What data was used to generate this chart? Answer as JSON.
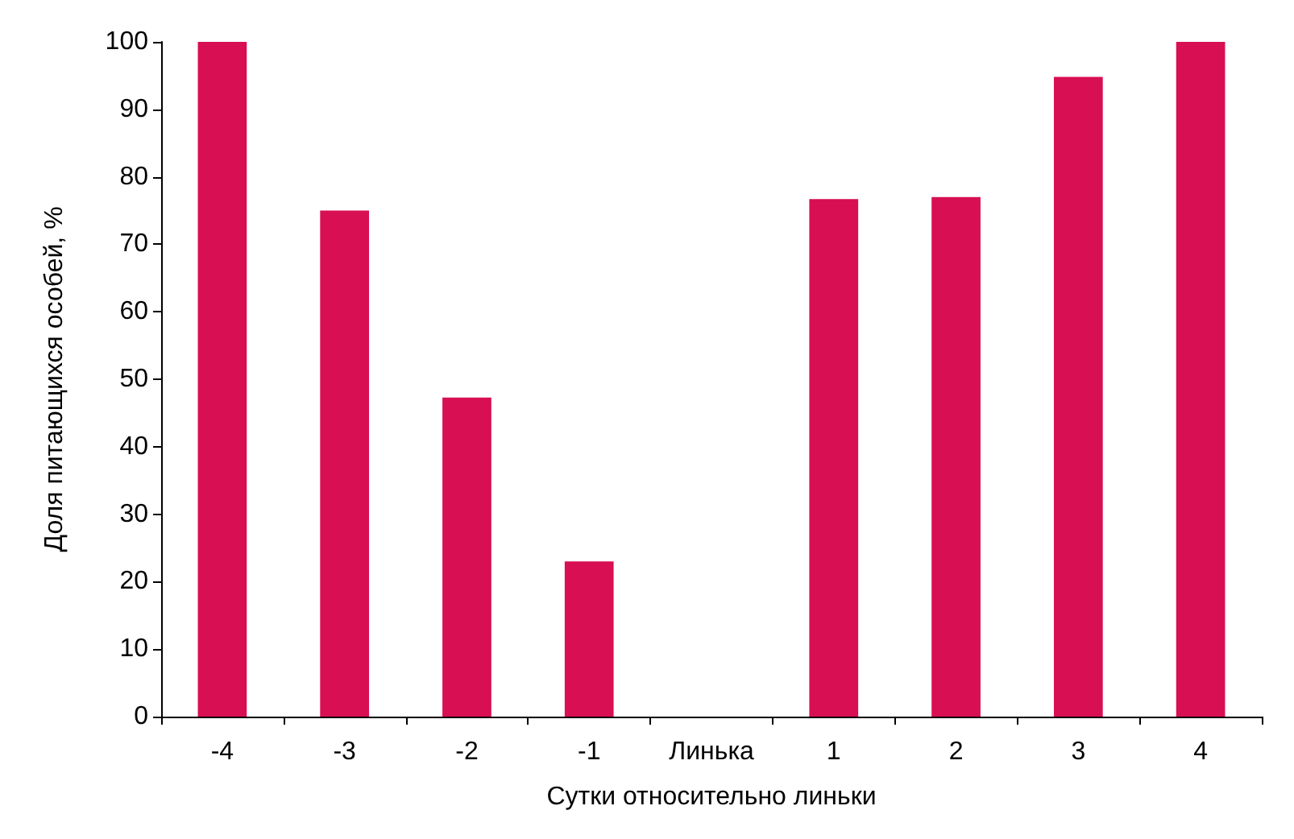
{
  "chart_data": {
    "type": "bar",
    "xlabel": "Сутки относительно линьки",
    "ylabel": "Доля питающихся особей, %",
    "categories": [
      "-4",
      "-3",
      "-2",
      "-1",
      "Линька",
      "1",
      "2",
      "3",
      "4"
    ],
    "values": [
      100,
      75,
      47.3,
      23,
      0,
      76.7,
      77,
      94.8,
      100
    ],
    "color": "#d80f52",
    "ylim": [
      0,
      100
    ],
    "yticks": [
      0,
      10,
      20,
      30,
      40,
      50,
      60,
      70,
      80,
      90,
      100
    ],
    "grid": false
  }
}
